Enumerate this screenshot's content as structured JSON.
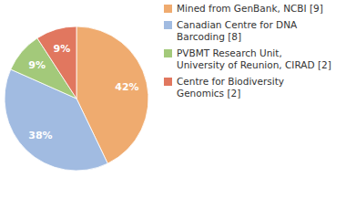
{
  "chart_data": {
    "type": "pie",
    "categories": [
      "Mined from GenBank, NCBI [9]",
      "Canadian Centre for DNA Barcoding [8]",
      "PVBMT Research Unit, University of Reunion, CIRAD [2]",
      "Centre for Biodiversity Genomics [2]"
    ],
    "values": [
      42,
      38,
      9,
      9
    ],
    "value_labels": [
      "42%",
      "38%",
      "9%",
      "9%"
    ],
    "colors": [
      "#efab6f",
      "#a1bbe1",
      "#a3c97a",
      "#e1775f"
    ],
    "data_labels": true,
    "legend": "top-right"
  }
}
